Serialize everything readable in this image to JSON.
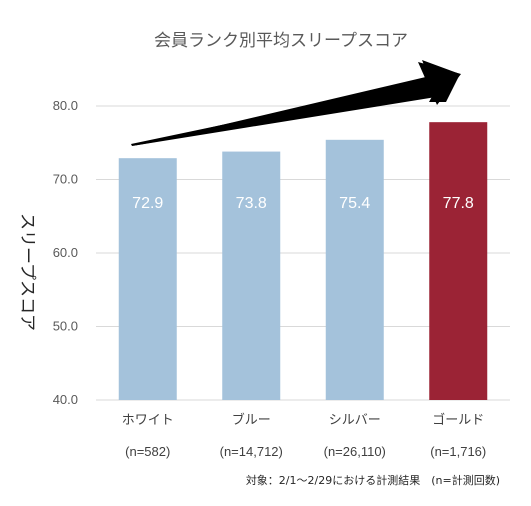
{
  "chart_data": {
    "type": "bar",
    "title": "会員ランク別平均スリープスコア",
    "ylabel": "スリープスコア",
    "xlabel": "",
    "ylim": [
      40,
      80
    ],
    "yticks": [
      "40.0",
      "50.0",
      "60.0",
      "70.0",
      "80.0"
    ],
    "categories": [
      "ホワイト",
      "ブルー",
      "シルバー",
      "ゴールド"
    ],
    "category_sublabels": [
      "(n=582)",
      "(n=14,712)",
      "(n=26,110)",
      "(n=1,716)"
    ],
    "values": [
      72.9,
      73.8,
      75.4,
      77.8
    ],
    "data_labels": [
      "72.9",
      "73.8",
      "75.4",
      "77.8"
    ],
    "bar_colors": [
      "#a4c2db",
      "#a4c2db",
      "#a4c2db",
      "#9b2335"
    ],
    "grid": true,
    "legend": "none",
    "annotation_arrow": "trend-up",
    "footnote": "対象：2/1～2/29における計測結果　(n=計測回数)"
  }
}
